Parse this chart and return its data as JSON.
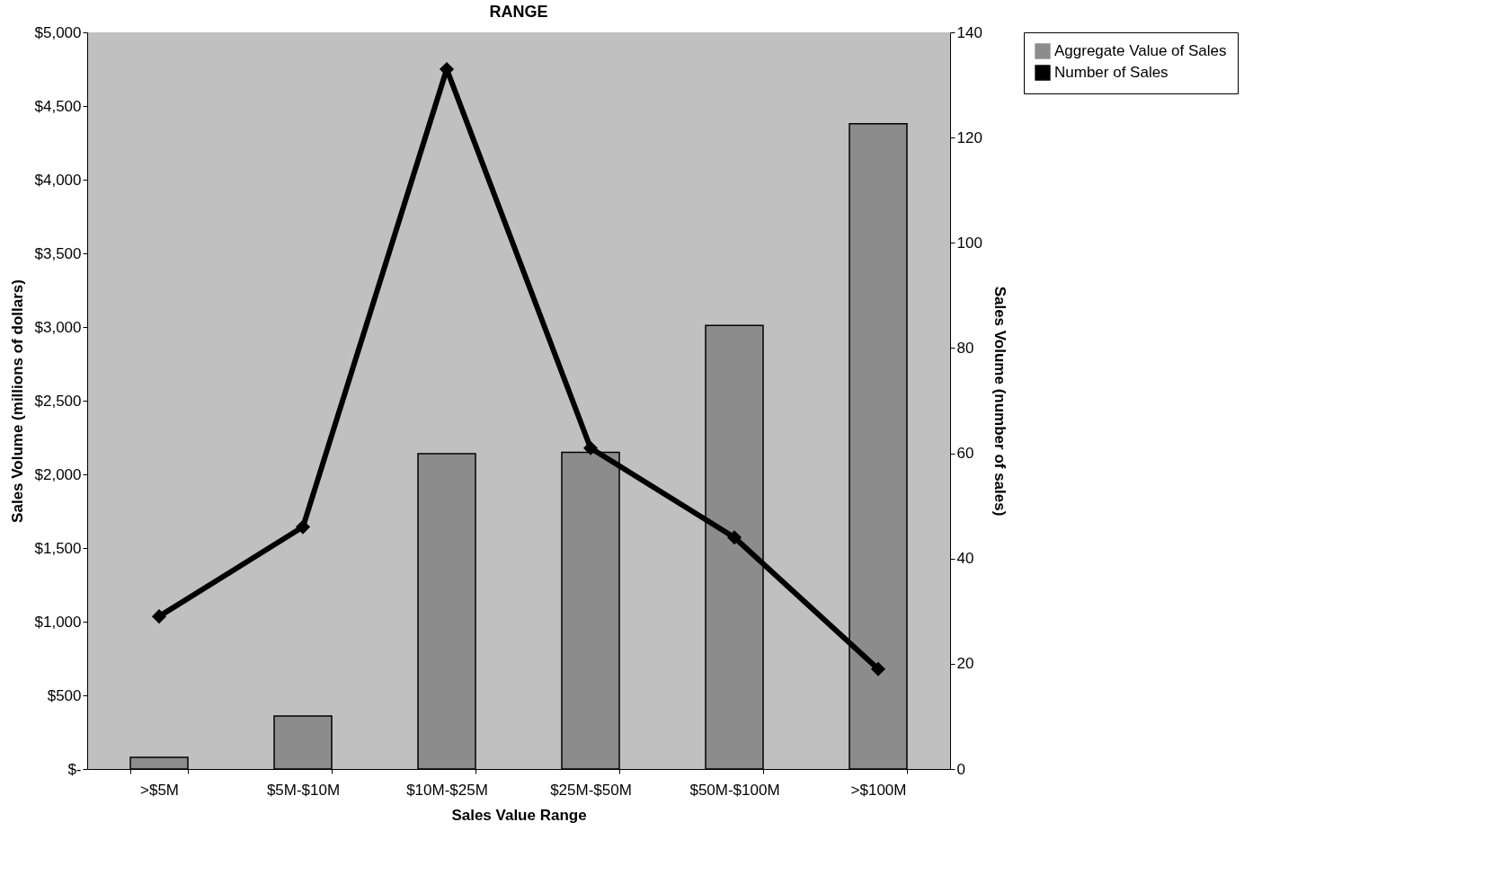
{
  "chart_data": {
    "type": "bar",
    "title": "RANGE",
    "xlabel": "Sales Value Range",
    "ylabel": "Sales Volume (millions of dollars)",
    "y2label": "Sales Volume (number of sales)",
    "categories": [
      ">$5M",
      "$5M-$10M",
      "$10M-$25M",
      "$25M-$50M",
      "$50M-$100M",
      ">$100M"
    ],
    "series": [
      {
        "name": "Aggregate Value of Sales",
        "color": "#8c8c8c",
        "values": [
          80,
          360,
          2140,
          2150,
          3010,
          4380
        ]
      },
      {
        "name": "Number of Sales",
        "type": "line",
        "axis": "y2",
        "color": "#000000",
        "values": [
          29,
          46,
          133,
          61,
          44,
          19
        ]
      }
    ],
    "ylim": [
      0,
      5000
    ],
    "yticks": [
      {
        "value": 0,
        "label": "$-"
      },
      {
        "value": 500,
        "label": "$500"
      },
      {
        "value": 1000,
        "label": "$1,000"
      },
      {
        "value": 1500,
        "label": "$1,500"
      },
      {
        "value": 2000,
        "label": "$2,000"
      },
      {
        "value": 2500,
        "label": "$2,500"
      },
      {
        "value": 3000,
        "label": "$3,000"
      },
      {
        "value": 3500,
        "label": "$3,500"
      },
      {
        "value": 4000,
        "label": "$4,000"
      },
      {
        "value": 4500,
        "label": "$4,500"
      },
      {
        "value": 5000,
        "label": "$5,000"
      }
    ],
    "y2lim": [
      0,
      140
    ],
    "y2ticks": [
      0,
      20,
      40,
      60,
      80,
      100,
      120,
      140
    ],
    "legend": "right",
    "marker": "diamond",
    "line_style": "solid"
  }
}
